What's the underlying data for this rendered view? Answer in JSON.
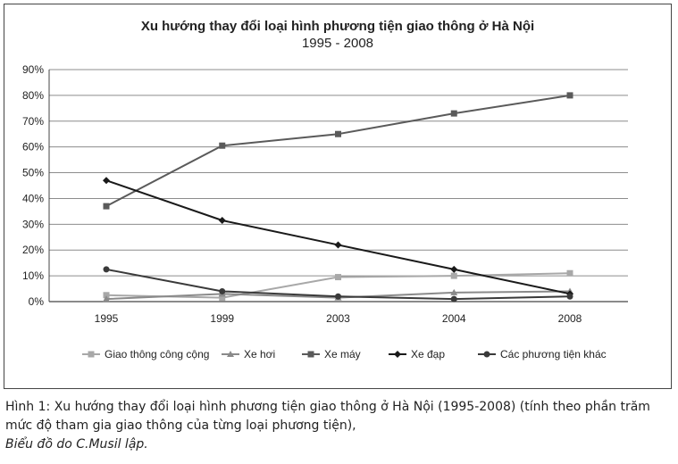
{
  "chart_data": {
    "type": "line",
    "title": "Xu hướng thay đổi loại hình phương tiện giao thông ở Hà Nội",
    "subtitle": "1995 - 2008",
    "categories": [
      "1995",
      "1999",
      "2003",
      "2004",
      "2008"
    ],
    "ylim": [
      0,
      90
    ],
    "yticks": [
      "0%",
      "10%",
      "20%",
      "30%",
      "40%",
      "50%",
      "60%",
      "70%",
      "80%",
      "90%"
    ],
    "grid": true,
    "legend_position": "bottom",
    "series": [
      {
        "name": "Giao thông công cộng",
        "values": [
          2.5,
          1.5,
          9.5,
          10,
          11
        ],
        "color": "#a8a8a8",
        "marker": "square"
      },
      {
        "name": "Xe hơi",
        "values": [
          1,
          3,
          1.5,
          3.5,
          4
        ],
        "color": "#8a8a8a",
        "marker": "triangle"
      },
      {
        "name": "Xe máy",
        "values": [
          37,
          60.5,
          65,
          73,
          80
        ],
        "color": "#5a5a5a",
        "marker": "square"
      },
      {
        "name": "Xe đạp",
        "values": [
          47,
          31.5,
          22,
          12.5,
          3
        ],
        "color": "#1a1a1a",
        "marker": "diamond"
      },
      {
        "name": "Các phương tiện khác",
        "values": [
          12.5,
          4,
          2,
          1,
          2
        ],
        "color": "#3a3a3a",
        "marker": "circle"
      }
    ]
  },
  "caption": {
    "line1": "Hình 1: Xu hướng thay đổi loại hình phương tiện giao thông ở Hà Nội (1995-2008) (tính theo phần trăm mức độ tham gia giao thông của từng loại phương tiện),",
    "credit": "Biểu đồ do C.Musil lập."
  }
}
